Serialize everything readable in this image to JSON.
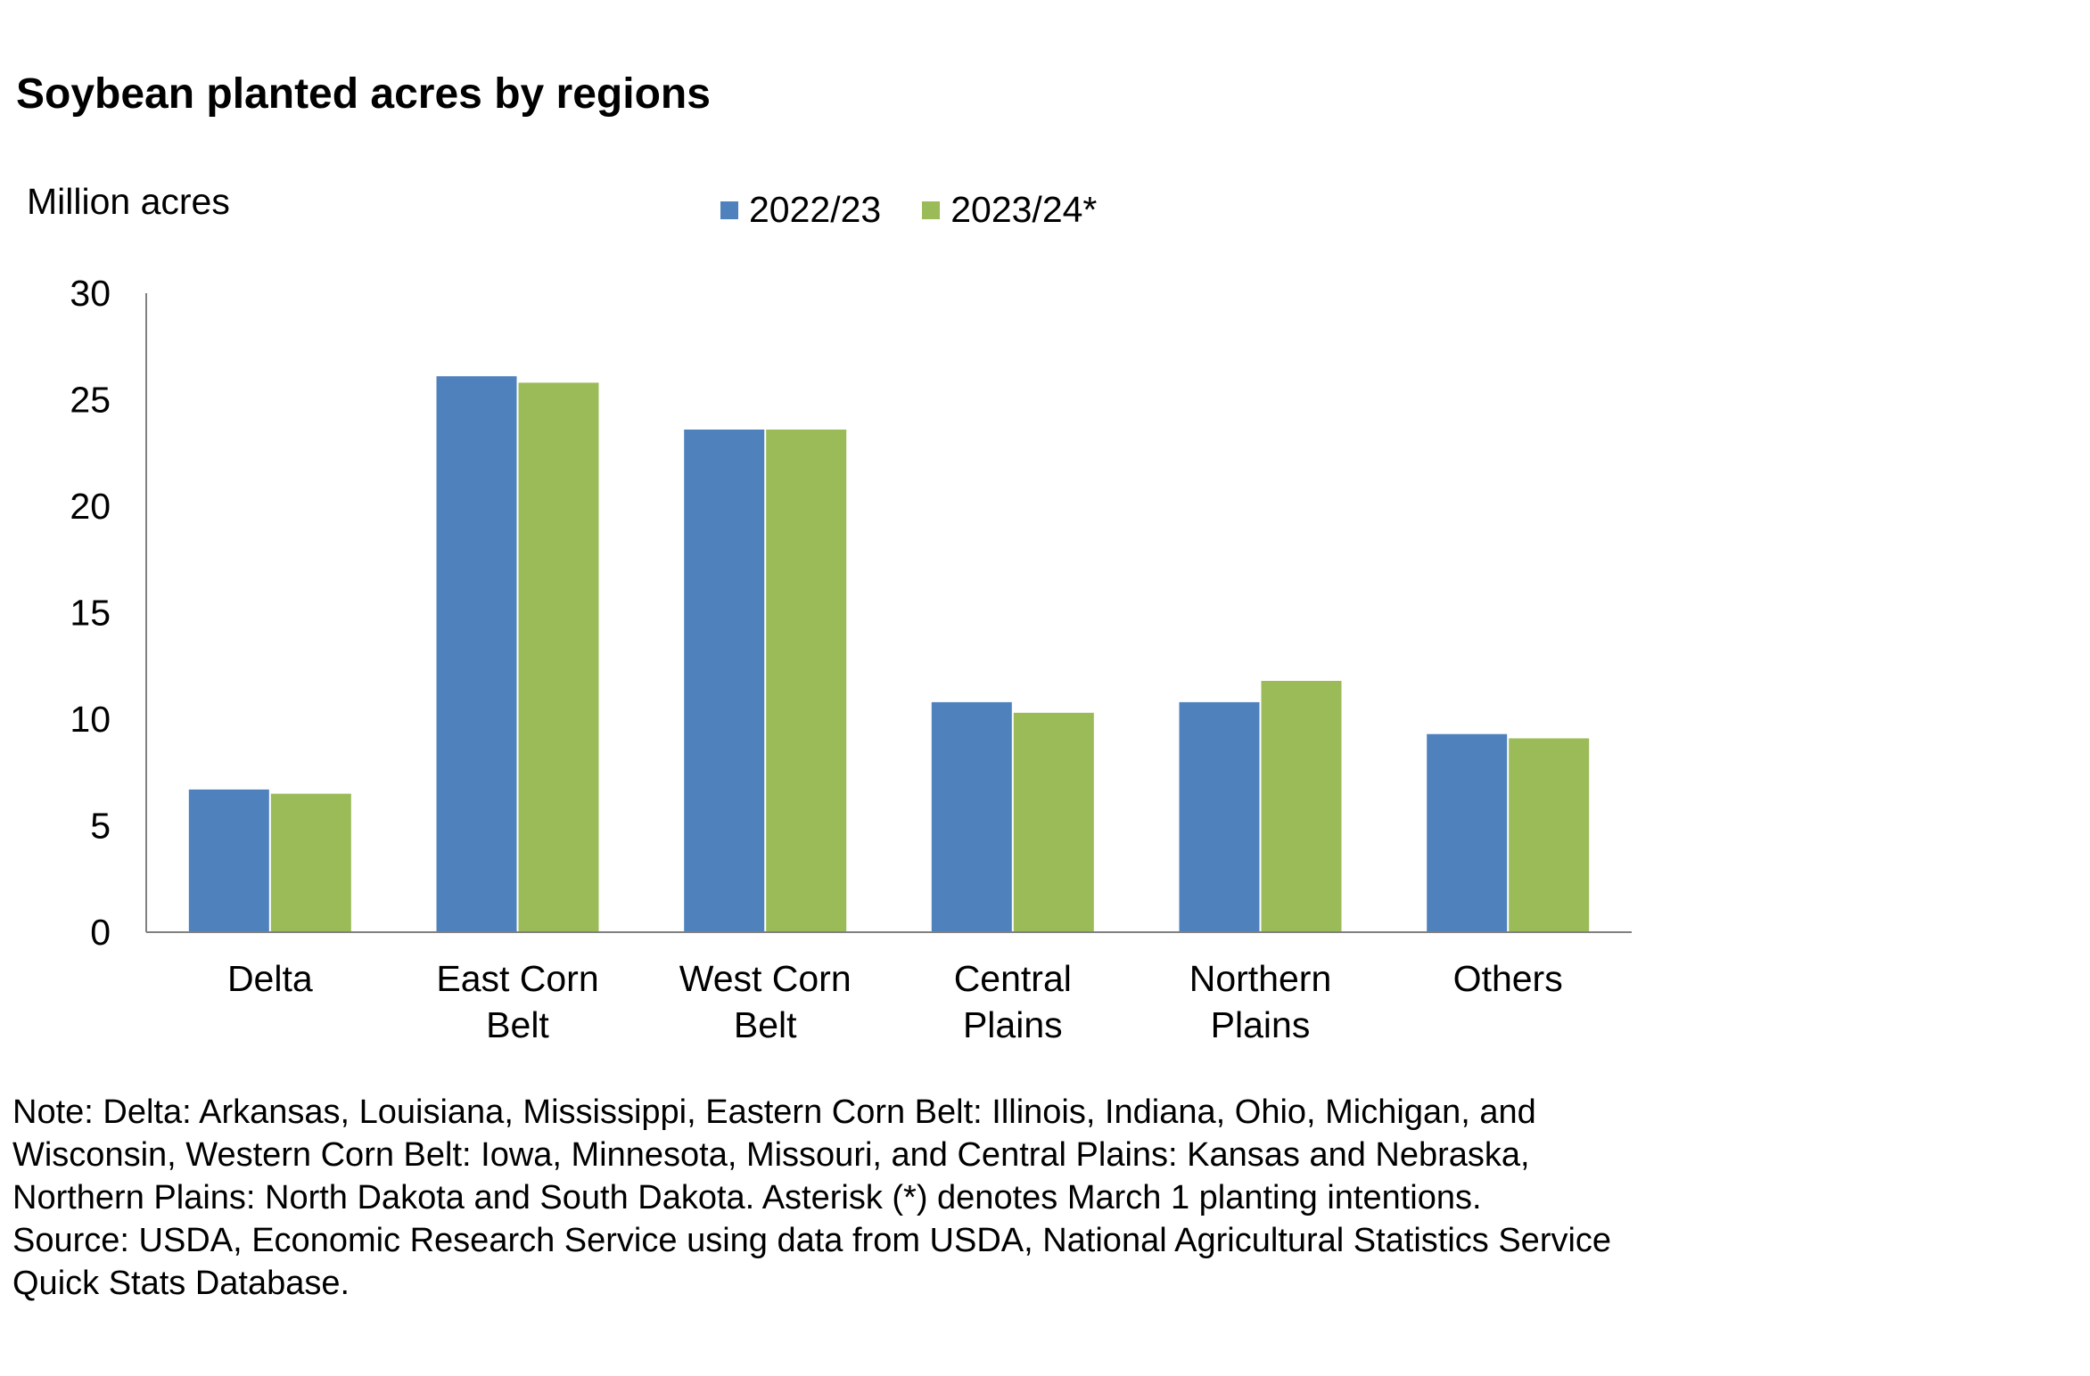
{
  "chart_data": {
    "type": "bar",
    "title": "Soybean planted acres by regions",
    "ylabel": "Million acres",
    "xlabel": "",
    "ylim": [
      0,
      30
    ],
    "yticks": [
      "0",
      "5",
      "10",
      "15",
      "20",
      "25",
      "30"
    ],
    "categories": [
      "Delta",
      "East Corn Belt",
      "West Corn Belt",
      "Central Plains",
      "Northern Plains",
      "Others"
    ],
    "category_lines": [
      [
        "Delta"
      ],
      [
        "East Corn",
        "Belt"
      ],
      [
        "West Corn",
        "Belt"
      ],
      [
        "Central",
        "Plains"
      ],
      [
        "Northern",
        "Plains"
      ],
      [
        "Others"
      ]
    ],
    "series": [
      {
        "name": "2022/23",
        "color": "#4F81BD",
        "values": [
          6.7,
          26.1,
          23.6,
          10.8,
          10.8,
          9.3
        ]
      },
      {
        "name": "2023/24*",
        "color": "#9BBB59",
        "values": [
          6.5,
          25.8,
          23.6,
          10.3,
          11.8,
          9.1
        ]
      }
    ],
    "grid": false,
    "legend_position": "top-center"
  },
  "notes": [
    "Note: Delta: Arkansas, Louisiana, Mississippi, Eastern Corn Belt: Illinois, Indiana, Ohio, Michigan, and",
    "Wisconsin, Western Corn Belt: Iowa, Minnesota, Missouri, and Central Plains: Kansas and Nebraska,",
    "Northern Plains: North Dakota and South Dakota. Asterisk (*) denotes March 1 planting intentions.",
    "Source: USDA, Economic Research Service using data from USDA, National Agricultural Statistics Service",
    "Quick Stats Database."
  ]
}
